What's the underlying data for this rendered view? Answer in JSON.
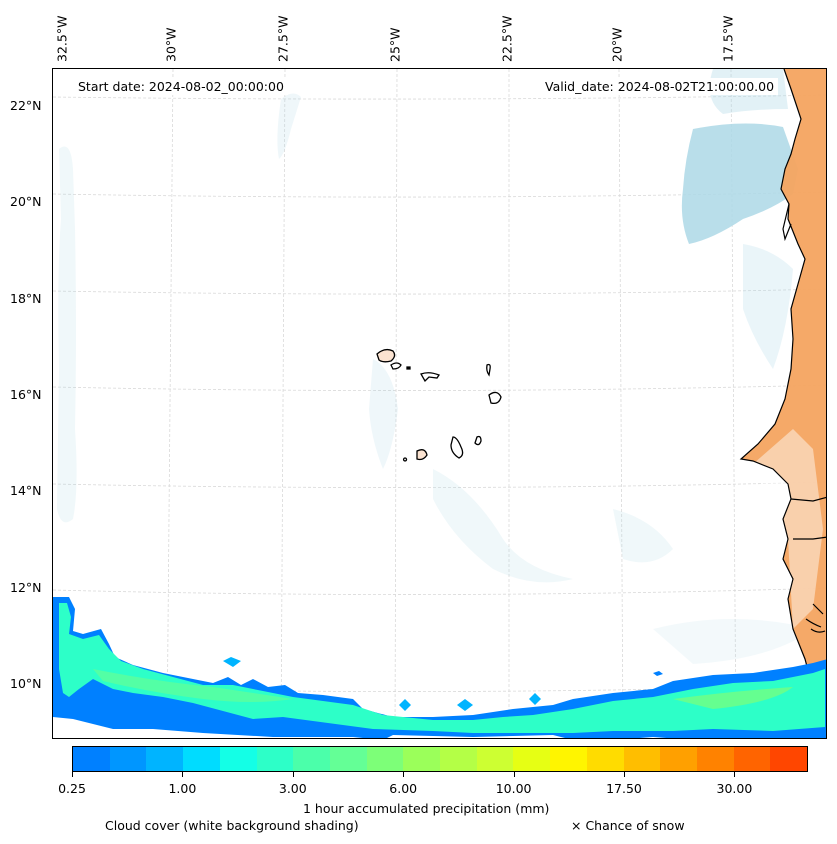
{
  "map": {
    "start_date_label": "Start date: 2024-08-02_00:00:00",
    "valid_date_label": "Valid_date: 2024-08-02T21:00:00.00",
    "longitude_labels": [
      "32.5°W",
      "30°W",
      "27.5°W",
      "25°W",
      "22.5°W",
      "20°W",
      "17.5°W"
    ],
    "latitude_labels": [
      "22°N",
      "20°N",
      "18°N",
      "16°N",
      "14°N",
      "12°N",
      "10°N"
    ],
    "land_color": "#f4a460",
    "cloud_color": "#add8e6",
    "coastline_color": "#000000",
    "gridline_color": "#cccccc"
  },
  "colorbar": {
    "title": "1 hour accumulated precipitation (mm)",
    "tick_labels": [
      "0.25",
      "1.00",
      "3.00",
      "6.00",
      "10.00",
      "17.50",
      "30.00"
    ],
    "tick_segment_index": [
      0,
      3,
      6,
      9,
      12,
      15,
      18
    ],
    "colors": [
      "#0080ff",
      "#0096ff",
      "#00b4ff",
      "#00dcff",
      "#14ffe6",
      "#2dffc8",
      "#4bffaa",
      "#64ff96",
      "#7dff78",
      "#9bff5a",
      "#b4ff46",
      "#cdff32",
      "#e6ff14",
      "#fff500",
      "#ffdc00",
      "#ffbe00",
      "#ffa000",
      "#ff8200",
      "#ff6400",
      "#ff4600"
    ]
  },
  "legend": {
    "cloud_note": "Cloud cover (white background shading)",
    "snow_note": "× Chance of snow"
  }
}
